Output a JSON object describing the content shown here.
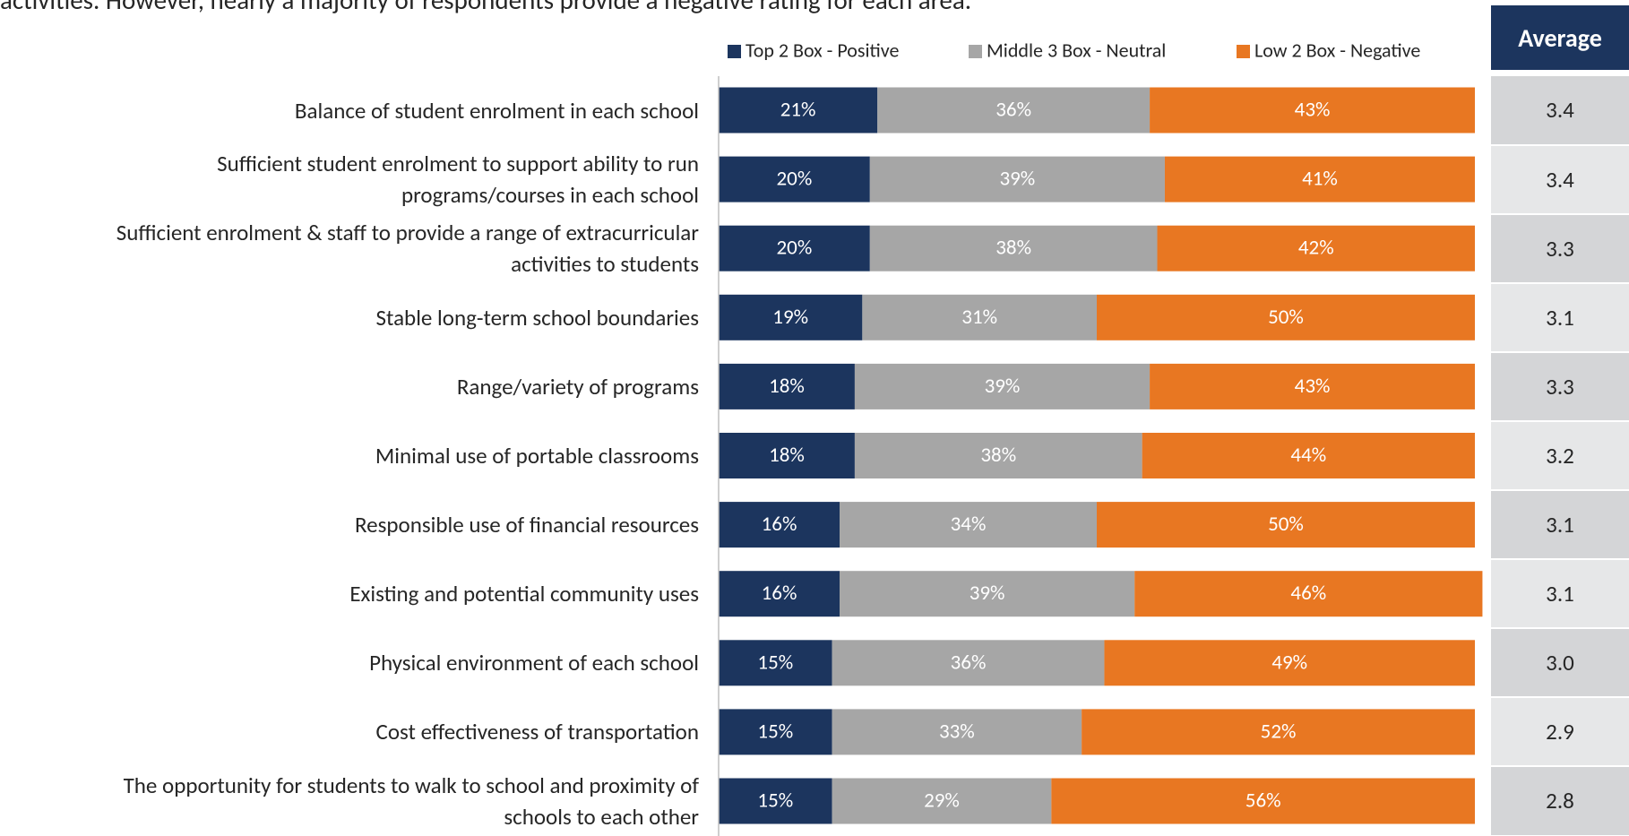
{
  "chart_data": {
    "type": "stacked_barh",
    "title": "activities.  However, nearly a majority of respondents provide a negative rating for each area.",
    "categories": [
      "Balance of student enrolment in each school",
      "Sufficient student enrolment to support ability to run\nprograms/courses in each school",
      "Sufficient enrolment & staff to provide a range of extracurricular\nactivities to students",
      "Stable long-term school boundaries",
      "Range/variety of programs",
      "Minimal use of portable classrooms",
      "Responsible use of financial resources",
      "Existing and potential community uses",
      "Physical environment of each school",
      "Cost effectiveness of transportation",
      "The opportunity for students to walk to school and proximity of\nschools to each other"
    ],
    "series": [
      {
        "name": "Top 2 Box - Positive",
        "color": "#1c355e",
        "values": [
          21,
          20,
          20,
          19,
          18,
          18,
          16,
          16,
          15,
          15,
          15
        ],
        "value_labels": [
          "21%",
          "20%",
          "20%",
          "19%",
          "18%",
          "18%",
          "16%",
          "16%",
          "15%",
          "15%",
          "15%"
        ]
      },
      {
        "name": "Middle 3 Box - Neutral",
        "color": "#a6a6a6",
        "values": [
          36,
          39,
          38,
          31,
          39,
          38,
          34,
          39,
          36,
          33,
          29
        ],
        "value_labels": [
          "36%",
          "39%",
          "38%",
          "31%",
          "39%",
          "38%",
          "34%",
          "39%",
          "36%",
          "33%",
          "29%"
        ]
      },
      {
        "name": "Low 2 Box - Negative",
        "color": "#e87722",
        "values": [
          43,
          41,
          42,
          50,
          43,
          44,
          50,
          46,
          49,
          52,
          56
        ],
        "value_labels": [
          "43%",
          "41%",
          "42%",
          "50%",
          "43%",
          "44%",
          "50%",
          "46%",
          "49%",
          "52%",
          "56%"
        ]
      }
    ],
    "xlim": [
      0,
      100
    ],
    "average_header": "Average",
    "averages": [
      "3.4",
      "3.4",
      "3.3",
      "3.1",
      "3.3",
      "3.2",
      "3.1",
      "3.1",
      "3.0",
      "2.9",
      "2.8"
    ]
  }
}
